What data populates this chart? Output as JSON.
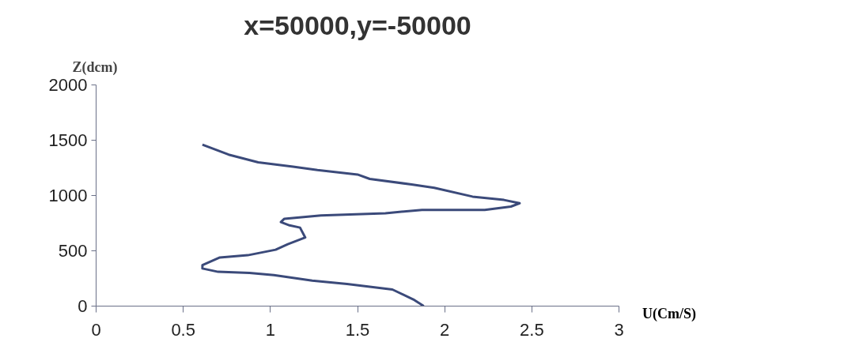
{
  "chart_data": {
    "type": "line",
    "title": "x=50000,y=-50000",
    "xlabel": "U(Cm/S)",
    "ylabel": "Z(dcm)",
    "xlim": [
      0,
      3
    ],
    "xticks": [
      0,
      0.5,
      1,
      1.5,
      2,
      2.5,
      3
    ],
    "ylim": [
      0,
      2000
    ],
    "yticks": [
      0,
      500,
      1000,
      1500,
      2000
    ],
    "grid": false,
    "marker": "none",
    "line_style": "solid",
    "series": [
      {
        "color": "#3b4a7a",
        "x": [
          1.88,
          1.82,
          1.7,
          1.44,
          1.24,
          1.02,
          0.88,
          0.7,
          0.61,
          0.61,
          0.71,
          0.87,
          1.03,
          1.1,
          1.2,
          1.17,
          1.11,
          1.06,
          1.08,
          1.29,
          1.66,
          1.87,
          2.23,
          2.38,
          2.43,
          2.34,
          2.16,
          1.94,
          1.81,
          1.57,
          1.5,
          1.27,
          1.13,
          0.93,
          0.76,
          0.61
        ],
        "values": [
          0,
          60,
          150,
          200,
          230,
          280,
          300,
          310,
          340,
          370,
          440,
          460,
          510,
          560,
          620,
          710,
          730,
          760,
          790,
          820,
          840,
          870,
          870,
          900,
          930,
          960,
          990,
          1070,
          1100,
          1150,
          1190,
          1230,
          1260,
          1300,
          1370,
          1460
        ]
      }
    ]
  }
}
